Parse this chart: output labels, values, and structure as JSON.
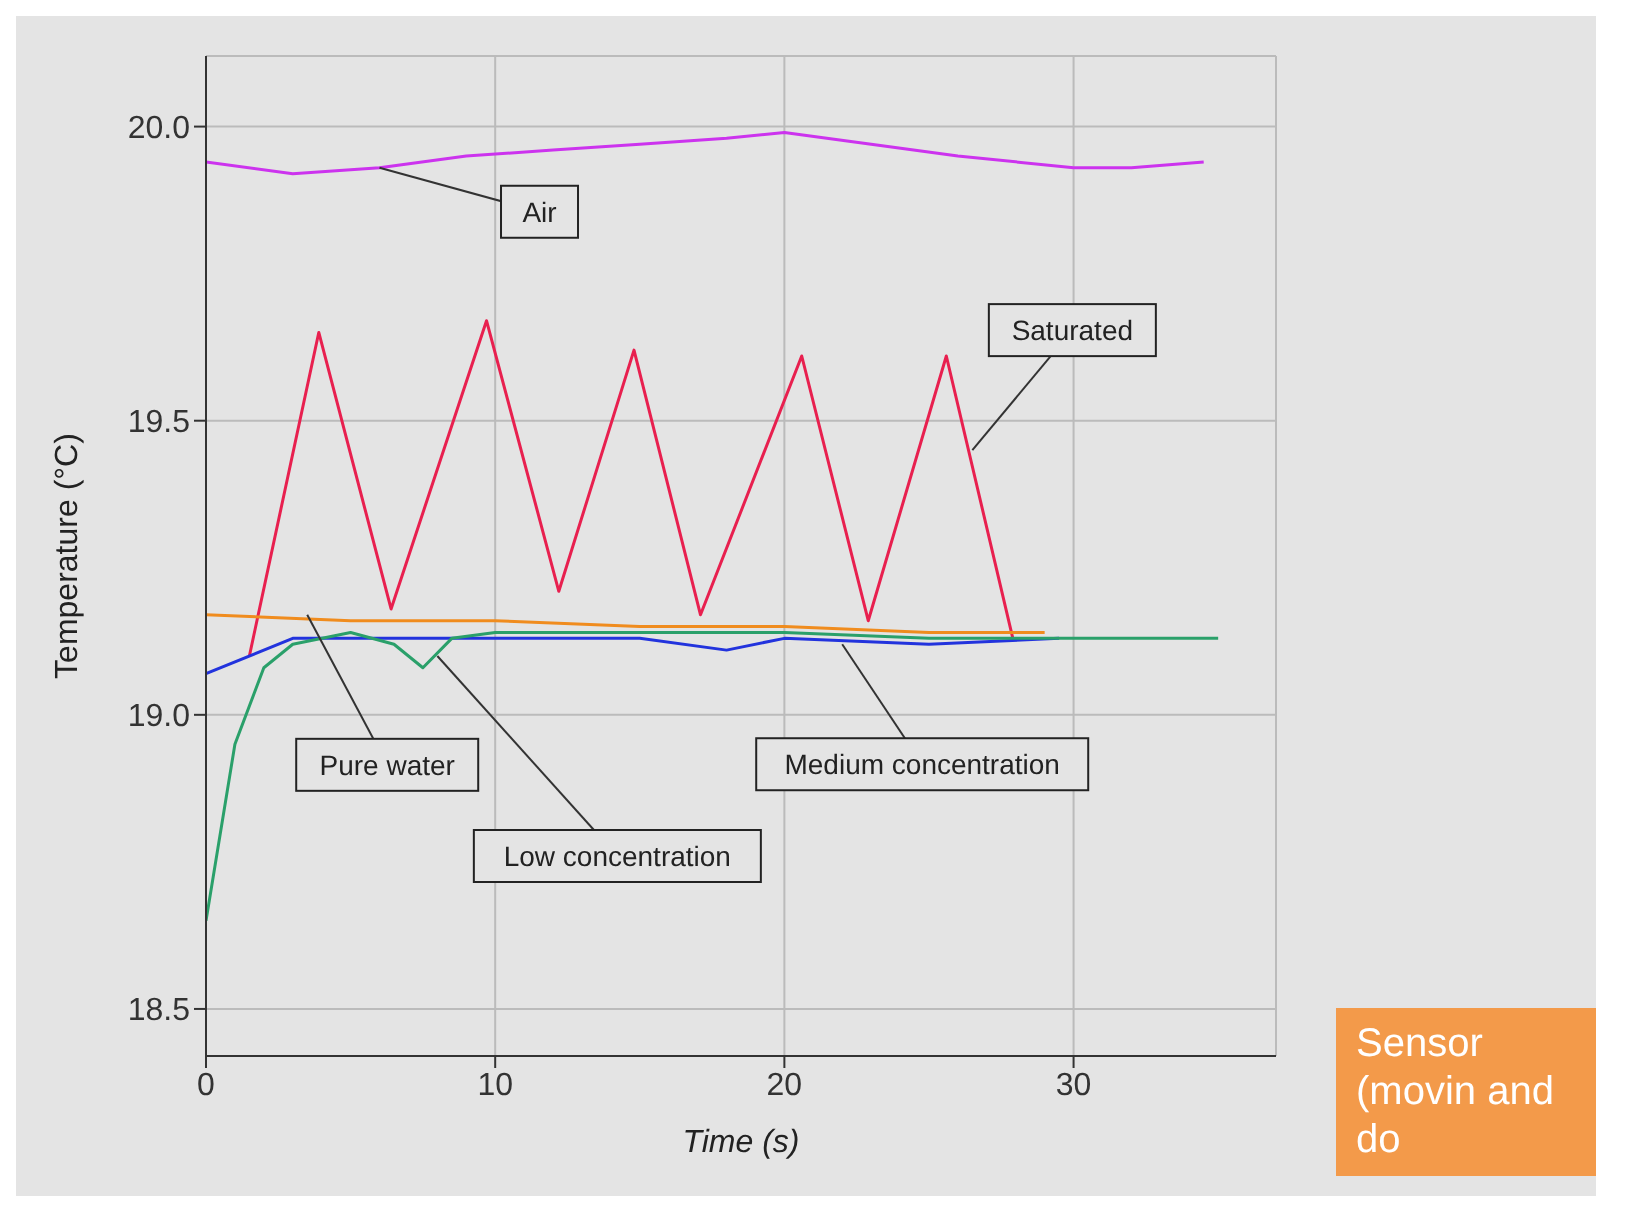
{
  "chart_data": {
    "type": "line",
    "xlabel": "Time (s)",
    "ylabel": "Temperature (°C)",
    "xlim": [
      0,
      37
    ],
    "xticks": [
      0,
      10,
      20,
      30
    ],
    "ylim": [
      18.42,
      20.12
    ],
    "yticks": [
      {
        "value": 18.5,
        "label": "18.5"
      },
      {
        "value": 19,
        "label": "19.0"
      },
      {
        "value": 19.5,
        "label": "19.5"
      },
      {
        "value": 20,
        "label": "20.0"
      }
    ],
    "grid": true,
    "marker": "none",
    "line_style": "solid",
    "series": [
      {
        "color": "#cc33ee",
        "x": [
          0,
          3,
          6,
          9,
          12,
          15,
          18,
          20,
          23,
          26,
          30,
          32,
          34.5
        ],
        "values": [
          19.94,
          19.92,
          19.93,
          19.95,
          19.96,
          19.97,
          19.98,
          19.99,
          19.97,
          19.95,
          19.93,
          19.93,
          19.94
        ]
      },
      {
        "color": "#e8204f",
        "x": [
          1.5,
          3.9,
          6.4,
          9.7,
          12.2,
          14.8,
          17.1,
          20.6,
          22.9,
          25.6,
          27.9
        ],
        "values": [
          19.1,
          19.65,
          19.18,
          19.67,
          19.21,
          19.62,
          19.17,
          19.61,
          19.16,
          19.61,
          19.13
        ]
      },
      {
        "color": "#f08c1e",
        "x": [
          0,
          5,
          10,
          15,
          20,
          25,
          29
        ],
        "values": [
          19.17,
          19.16,
          19.16,
          19.15,
          19.15,
          19.14,
          19.14
        ]
      },
      {
        "color": "#2233dd",
        "x": [
          0,
          3,
          6,
          10,
          15,
          18,
          20,
          25,
          29.5
        ],
        "values": [
          19.07,
          19.13,
          19.13,
          19.13,
          19.13,
          19.11,
          19.13,
          19.12,
          19.13
        ]
      },
      {
        "color": "#2aa06a",
        "x": [
          0,
          1,
          2,
          3,
          5,
          6.5,
          7.5,
          8.5,
          10,
          15,
          20,
          25,
          30,
          35
        ],
        "values": [
          18.65,
          18.95,
          19.08,
          19.12,
          19.14,
          19.12,
          19.08,
          19.13,
          19.14,
          19.14,
          19.14,
          19.13,
          19.13,
          19.13
        ]
      }
    ],
    "annotations": [
      {
        "text": "Air",
        "x": 6,
        "y": 19.93
      },
      {
        "text": "Saturated",
        "x": 26.5,
        "y": 19.45
      },
      {
        "text": "Pure water",
        "x": 3.5,
        "y": 19.17
      },
      {
        "text": "Low concentration",
        "x": 8,
        "y": 19.1
      },
      {
        "text": "Medium concentration",
        "x": 22,
        "y": 19.12
      },
      "Sensor (movin and do"
    ]
  }
}
